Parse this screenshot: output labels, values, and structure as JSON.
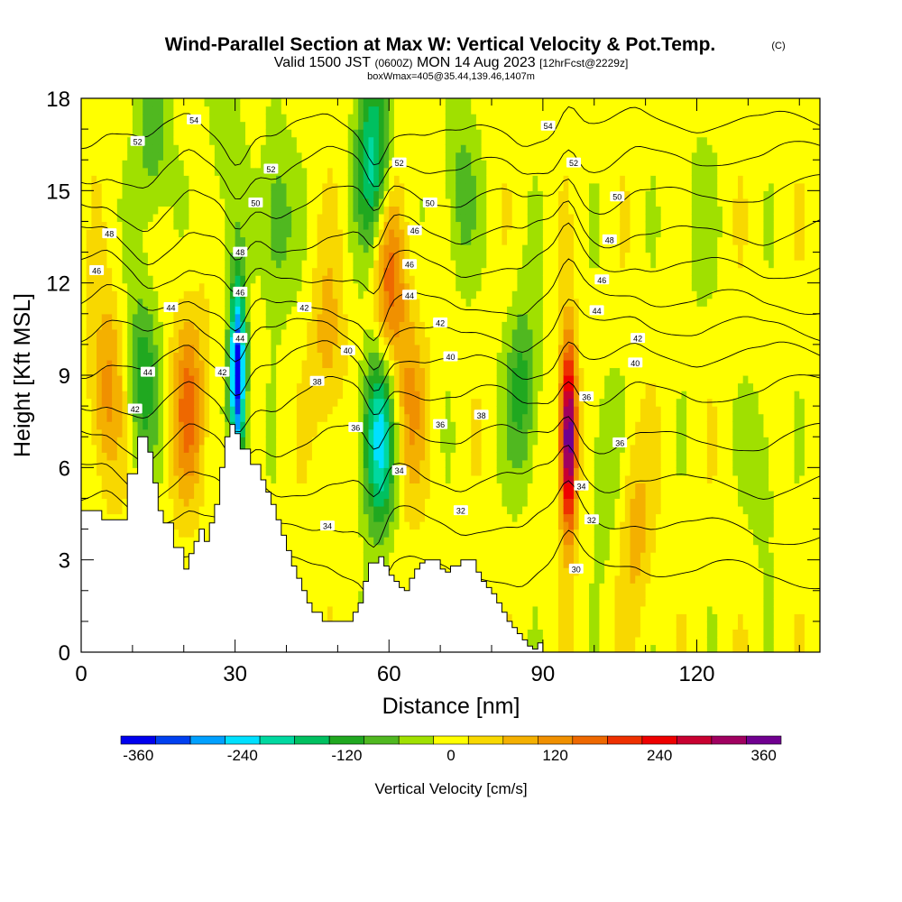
{
  "header": {
    "title": "Wind-Parallel Section at Max W: Vertical Velocity & Pot.Temp.",
    "copyright": "(C)",
    "valid_prefix": "Valid 1500 JST",
    "valid_utc": "(0600Z)",
    "valid_date": "MON 14 Aug 2023",
    "forecast_info": "[12hrFcst@2229z]",
    "box_info": "boxWmax=405@35.44,139.46,1407m"
  },
  "chart_data": {
    "type": "heatmap",
    "title": "Wind-Parallel Section at Max W: Vertical Velocity & Pot.Temp.",
    "xlabel": "Distance [nm]",
    "ylabel": "Height [Kft MSL]",
    "xlim": [
      0,
      144
    ],
    "ylim": [
      0,
      18
    ],
    "x_ticks": [
      0,
      30,
      60,
      90,
      120
    ],
    "y_ticks": [
      0,
      3,
      6,
      9,
      12,
      15,
      18
    ],
    "grid": false,
    "colorbar": {
      "label": "Vertical Velocity [cm/s]",
      "range": [
        -380,
        380
      ],
      "ticks": [
        -360,
        -240,
        -120,
        0,
        120,
        240,
        360
      ],
      "levels": [
        -380,
        -340,
        -300,
        -260,
        -220,
        -180,
        -140,
        -100,
        -60,
        -20,
        20,
        60,
        100,
        140,
        180,
        220,
        260,
        300,
        340,
        380
      ],
      "colors": [
        "#0000ee",
        "#0040f0",
        "#00a0ff",
        "#00e0ff",
        "#00d8a0",
        "#00c060",
        "#20a820",
        "#50b820",
        "#a0e000",
        "#ffff00",
        "#f8d800",
        "#f4b000",
        "#f09000",
        "#ee6800",
        "#ee3000",
        "#ee0000",
        "#c80030",
        "#a00060",
        "#700090"
      ]
    },
    "terrain_profile": {
      "x_nm": [
        0,
        4,
        4,
        9,
        9,
        11,
        11,
        13,
        13,
        14,
        14,
        15,
        15,
        16,
        16,
        18,
        18,
        20,
        20,
        21,
        21,
        22,
        22,
        23,
        23,
        24,
        24,
        25,
        25,
        26,
        26,
        27,
        27,
        28,
        28,
        29,
        29,
        30,
        30,
        31,
        31,
        33,
        33,
        35,
        35,
        36,
        36,
        37,
        37,
        38,
        38,
        39,
        39,
        40,
        40,
        41,
        41,
        42,
        42,
        43,
        43,
        44,
        44,
        45,
        45,
        47,
        47,
        48,
        48,
        50,
        50,
        53,
        53,
        54,
        54,
        55,
        55,
        56,
        56,
        58,
        58,
        59,
        59,
        60,
        60,
        61,
        61,
        62,
        62,
        63,
        63,
        64,
        64,
        65,
        65,
        66,
        66,
        67,
        67,
        69,
        69,
        70,
        70,
        71,
        71,
        72,
        72,
        74,
        74,
        76,
        76,
        77,
        77,
        78,
        78,
        79,
        79,
        80,
        80,
        81,
        81,
        82,
        82,
        83,
        83,
        84,
        84,
        85,
        85,
        86,
        86,
        87,
        87,
        88,
        88,
        89,
        89,
        90,
        90,
        144
      ],
      "height_kft": [
        4.6,
        4.6,
        4.3,
        4.3,
        5.8,
        5.8,
        7.0,
        7.0,
        6.5,
        6.5,
        5.5,
        5.5,
        4.6,
        4.6,
        4.2,
        4.2,
        3.4,
        3.4,
        2.7,
        2.7,
        3.2,
        3.2,
        3.6,
        3.6,
        4.0,
        4.0,
        3.6,
        3.6,
        4.2,
        4.2,
        4.8,
        4.8,
        6.0,
        6.0,
        7.0,
        7.0,
        7.4,
        7.4,
        7.1,
        7.1,
        6.6,
        6.6,
        6.1,
        6.1,
        5.6,
        5.6,
        5.2,
        5.2,
        4.8,
        4.8,
        4.3,
        4.3,
        3.8,
        3.8,
        3.3,
        3.3,
        2.8,
        2.8,
        2.4,
        2.4,
        2.0,
        2.0,
        1.6,
        1.6,
        1.3,
        1.3,
        1.0,
        1.0,
        1.0,
        1.0,
        1.0,
        1.0,
        1.3,
        1.3,
        1.6,
        1.6,
        2.3,
        2.3,
        2.9,
        2.9,
        3.1,
        3.1,
        2.8,
        2.8,
        2.5,
        2.5,
        2.3,
        2.3,
        2.1,
        2.1,
        2.0,
        2.0,
        2.4,
        2.4,
        2.7,
        2.7,
        2.9,
        2.9,
        3.0,
        3.0,
        3.0,
        3.0,
        2.7,
        2.7,
        2.6,
        2.6,
        2.8,
        2.8,
        3.0,
        3.0,
        3.0,
        3.0,
        2.6,
        2.6,
        2.3,
        2.3,
        2.1,
        2.1,
        1.9,
        1.9,
        1.6,
        1.6,
        1.3,
        1.3,
        1.0,
        1.0,
        0.8,
        0.8,
        0.6,
        0.6,
        0.4,
        0.4,
        0.2,
        0.2,
        0.1,
        0.1,
        0.3,
        0.3,
        0.0,
        0.0
      ]
    },
    "velocity_features": [
      {
        "x_nm": 5,
        "height_kft": 8.5,
        "w_cms": 120
      },
      {
        "x_nm": 12,
        "height_kft": 9,
        "w_cms": -120
      },
      {
        "x_nm": 14,
        "height_kft": 17,
        "w_cms": -100
      },
      {
        "x_nm": 21,
        "height_kft": 8,
        "w_cms": 150
      },
      {
        "x_nm": 30.5,
        "height_kft": 9,
        "w_cms": -380
      },
      {
        "x_nm": 28,
        "height_kft": 17,
        "w_cms": -60
      },
      {
        "x_nm": 38,
        "height_kft": 14,
        "w_cms": -100
      },
      {
        "x_nm": 48,
        "height_kft": 10,
        "w_cms": 80
      },
      {
        "x_nm": 58,
        "height_kft": 7,
        "w_cms": -240
      },
      {
        "x_nm": 57,
        "height_kft": 16,
        "w_cms": -200
      },
      {
        "x_nm": 60,
        "height_kft": 12,
        "w_cms": 160
      },
      {
        "x_nm": 64,
        "height_kft": 8,
        "w_cms": 100
      },
      {
        "x_nm": 74,
        "height_kft": 15,
        "w_cms": -80
      },
      {
        "x_nm": 86,
        "height_kft": 8.5,
        "w_cms": -120
      },
      {
        "x_nm": 95,
        "height_kft": 7,
        "w_cms": 405
      },
      {
        "x_nm": 102,
        "height_kft": 6,
        "w_cms": -60
      },
      {
        "x_nm": 108,
        "height_kft": 4,
        "w_cms": 80
      },
      {
        "x_nm": 120,
        "height_kft": 14,
        "w_cms": -40
      },
      {
        "x_nm": 133,
        "height_kft": 6,
        "w_cms": -50
      }
    ],
    "isentropes": [
      {
        "value": 30,
        "y_left": 3.0,
        "y_right": 2.5
      },
      {
        "value": 32,
        "y_left": 4.5,
        "y_right": 4.0
      },
      {
        "value": 34,
        "y_left": 5.6,
        "y_right": 5.6
      },
      {
        "value": 36,
        "y_left": 7.0,
        "y_right": 7.0
      },
      {
        "value": 38,
        "y_left": 8.2,
        "y_right": 8.5
      },
      {
        "value": 40,
        "y_left": 9.4,
        "y_right": 9.6
      },
      {
        "value": 42,
        "y_left": 10.4,
        "y_right": 10.5
      },
      {
        "value": 44,
        "y_left": 11.2,
        "y_right": 11.5
      },
      {
        "value": 46,
        "y_left": 12.3,
        "y_right": 12.7
      },
      {
        "value": 48,
        "y_left": 13.4,
        "y_right": 13.8
      },
      {
        "value": 50,
        "y_left": 14.5,
        "y_right": 15.0
      },
      {
        "value": 52,
        "y_left": 15.6,
        "y_right": 16.1
      },
      {
        "value": 54,
        "y_left": 16.8,
        "y_right": 17.2
      }
    ],
    "contour_labels": [
      {
        "text": "54",
        "x": 22,
        "y": 17.3
      },
      {
        "text": "52",
        "x": 11,
        "y": 16.6
      },
      {
        "text": "52",
        "x": 37,
        "y": 15.7
      },
      {
        "text": "50",
        "x": 34,
        "y": 14.6
      },
      {
        "text": "48",
        "x": 5.5,
        "y": 13.6
      },
      {
        "text": "48",
        "x": 31,
        "y": 13.0
      },
      {
        "text": "46",
        "x": 3,
        "y": 12.4
      },
      {
        "text": "46",
        "x": 31,
        "y": 11.7
      },
      {
        "text": "44",
        "x": 17.5,
        "y": 11.2
      },
      {
        "text": "44",
        "x": 31,
        "y": 10.2
      },
      {
        "text": "44",
        "x": 13,
        "y": 9.1
      },
      {
        "text": "42",
        "x": 10.5,
        "y": 7.9
      },
      {
        "text": "42",
        "x": 27.5,
        "y": 9.1
      },
      {
        "text": "42",
        "x": 43.5,
        "y": 11.2
      },
      {
        "text": "40",
        "x": 52,
        "y": 9.8
      },
      {
        "text": "38",
        "x": 46,
        "y": 8.8
      },
      {
        "text": "36",
        "x": 53.5,
        "y": 7.3
      },
      {
        "text": "34",
        "x": 48,
        "y": 4.1
      },
      {
        "text": "34",
        "x": 62,
        "y": 5.9
      },
      {
        "text": "32",
        "x": 74,
        "y": 4.6
      },
      {
        "text": "32",
        "x": 99.5,
        "y": 4.3
      },
      {
        "text": "30",
        "x": 96.5,
        "y": 2.7
      },
      {
        "text": "34",
        "x": 97.5,
        "y": 5.4
      },
      {
        "text": "36",
        "x": 98.5,
        "y": 8.3
      },
      {
        "text": "36",
        "x": 70,
        "y": 7.4
      },
      {
        "text": "38",
        "x": 78,
        "y": 7.7
      },
      {
        "text": "36",
        "x": 105,
        "y": 6.8
      },
      {
        "text": "40",
        "x": 72,
        "y": 9.6
      },
      {
        "text": "40",
        "x": 108,
        "y": 9.4
      },
      {
        "text": "42",
        "x": 70,
        "y": 10.7
      },
      {
        "text": "42",
        "x": 108.5,
        "y": 10.2
      },
      {
        "text": "44",
        "x": 64,
        "y": 11.6
      },
      {
        "text": "44",
        "x": 100.5,
        "y": 11.1
      },
      {
        "text": "46",
        "x": 64,
        "y": 12.6
      },
      {
        "text": "46",
        "x": 101.5,
        "y": 12.1
      },
      {
        "text": "46",
        "x": 65,
        "y": 13.7
      },
      {
        "text": "48",
        "x": 103,
        "y": 13.4
      },
      {
        "text": "50",
        "x": 68,
        "y": 14.6
      },
      {
        "text": "50",
        "x": 104.5,
        "y": 14.8
      },
      {
        "text": "52",
        "x": 62,
        "y": 15.9
      },
      {
        "text": "52",
        "x": 96,
        "y": 15.9
      },
      {
        "text": "54",
        "x": 91,
        "y": 17.1
      }
    ]
  }
}
